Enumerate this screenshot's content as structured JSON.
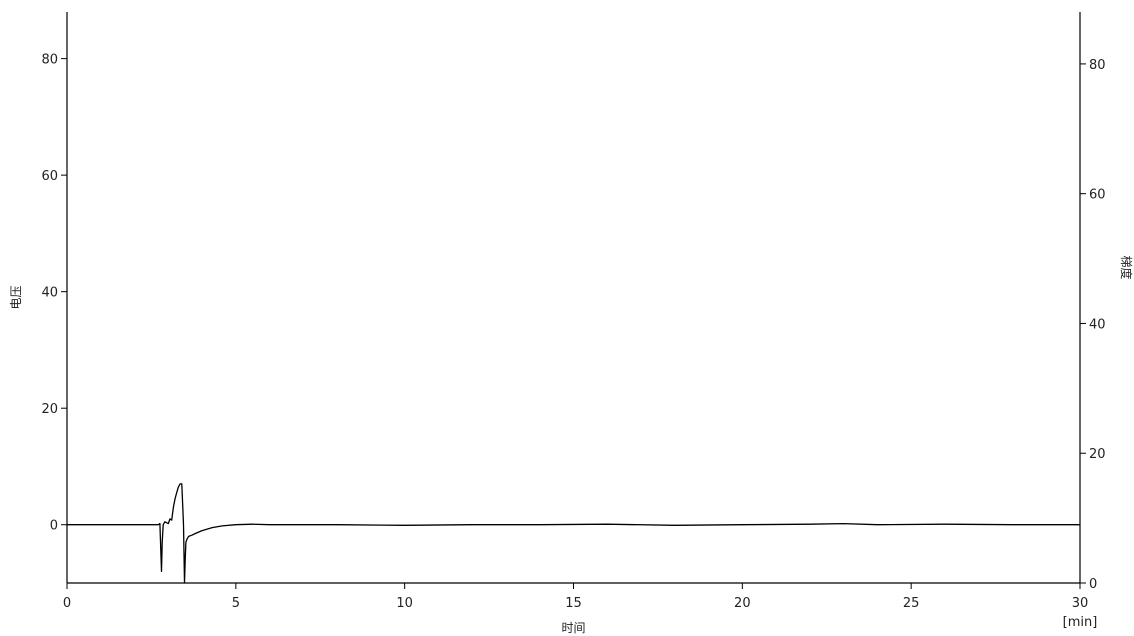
{
  "chart_data": {
    "type": "line",
    "title": "",
    "xlabel": "时间",
    "x_unit": "[min]",
    "ylabel_left": "电压",
    "ylabel_right": "梯度",
    "xlim": [
      0,
      30
    ],
    "ylim_left": [
      -10,
      88
    ],
    "ylim_right": [
      0,
      88
    ],
    "x_ticks": [
      0,
      5,
      10,
      15,
      20,
      25,
      30
    ],
    "y_ticks_left": [
      0,
      20,
      40,
      60,
      80
    ],
    "y_ticks_right": [
      0,
      20,
      40,
      60,
      80
    ],
    "grid": false,
    "series": [
      {
        "axis": "left",
        "x": [
          0,
          2.0,
          2.7,
          2.75,
          2.8,
          2.82,
          2.85,
          2.9,
          3.0,
          3.05,
          3.1,
          3.15,
          3.2,
          3.25,
          3.3,
          3.35,
          3.4,
          3.45,
          3.48,
          3.5,
          3.52,
          3.55,
          3.6,
          3.7,
          3.8,
          4.0,
          4.3,
          4.6,
          5.0,
          5.5,
          6,
          8,
          10,
          12,
          14,
          16,
          18,
          20,
          22,
          23,
          24,
          26,
          28,
          30
        ],
        "y": [
          0,
          0,
          0,
          0.2,
          -8,
          -3,
          0,
          0.5,
          0.2,
          1,
          0.8,
          3,
          4.5,
          5.5,
          6.5,
          7,
          7,
          0,
          -10,
          -6,
          -3,
          -2.5,
          -2,
          -1.8,
          -1.5,
          -1,
          -0.5,
          -0.2,
          0,
          0.1,
          0,
          0,
          -0.1,
          0,
          0,
          0.1,
          -0.1,
          0,
          0.1,
          0.2,
          0,
          0.1,
          0,
          0
        ]
      }
    ]
  }
}
